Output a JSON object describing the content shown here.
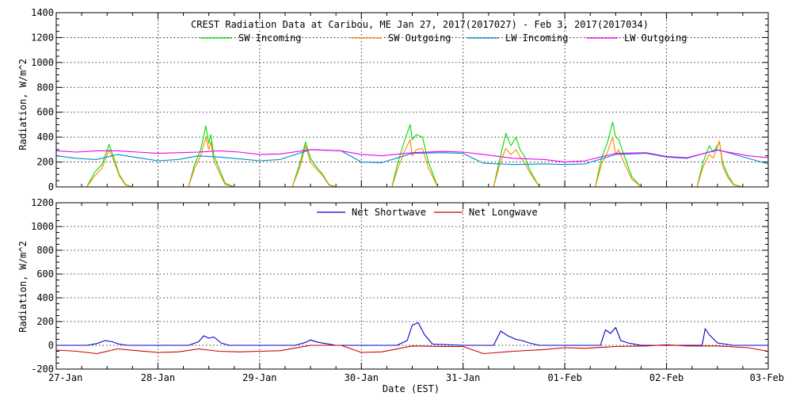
{
  "chart_data": [
    {
      "type": "line",
      "title": "CREST Radiation Data at Caribou, ME   Jan 27, 2017(2017027) - Feb  3, 2017(2017034)",
      "ylabel": "Radiation, W/m^2",
      "xlabel": "",
      "ylim": [
        0,
        1400
      ],
      "yticks": [
        0,
        200,
        400,
        600,
        800,
        1000,
        1200,
        1400
      ],
      "xlim": [
        0,
        7
      ],
      "xticklabels": [],
      "grid": true,
      "legend_position": "top",
      "series": [
        {
          "name": "SW Incoming",
          "color": "#00dd00",
          "x": [
            0,
            0.3,
            0.38,
            0.45,
            0.52,
            0.58,
            0.62,
            0.68,
            0.75,
            1,
            1.3,
            1.36,
            1.42,
            1.47,
            1.5,
            1.52,
            1.55,
            1.6,
            1.66,
            1.75,
            2,
            2.32,
            2.4,
            2.45,
            2.5,
            2.55,
            2.62,
            2.68,
            2.75,
            3,
            3.3,
            3.36,
            3.42,
            3.48,
            3.5,
            3.54,
            3.6,
            3.66,
            3.75,
            4,
            4.3,
            4.36,
            4.42,
            4.47,
            4.52,
            4.56,
            4.6,
            4.66,
            4.75,
            5,
            5.3,
            5.36,
            5.42,
            5.47,
            5.5,
            5.53,
            5.58,
            5.66,
            5.75,
            6,
            6.3,
            6.36,
            6.42,
            6.46,
            6.52,
            6.55,
            6.6,
            6.66,
            6.75,
            7
          ],
          "values": [
            0,
            0,
            120,
            180,
            340,
            200,
            100,
            20,
            0,
            0,
            0,
            180,
            300,
            490,
            350,
            420,
            250,
            150,
            30,
            0,
            0,
            0,
            200,
            360,
            230,
            170,
            100,
            20,
            0,
            0,
            0,
            200,
            360,
            500,
            380,
            420,
            400,
            200,
            0,
            0,
            0,
            220,
            430,
            330,
            400,
            300,
            250,
            130,
            0,
            0,
            0,
            230,
            360,
            520,
            400,
            380,
            260,
            80,
            0,
            0,
            0,
            200,
            330,
            280,
            360,
            200,
            100,
            20,
            0,
            0
          ]
        },
        {
          "name": "SW Outgoing",
          "color": "#ff8800",
          "x": [
            0,
            0.3,
            0.38,
            0.45,
            0.52,
            0.58,
            0.62,
            0.68,
            0.75,
            1,
            1.3,
            1.36,
            1.42,
            1.47,
            1.5,
            1.52,
            1.55,
            1.6,
            1.66,
            1.75,
            2,
            2.32,
            2.4,
            2.45,
            2.5,
            2.55,
            2.62,
            2.68,
            2.75,
            3,
            3.3,
            3.36,
            3.42,
            3.48,
            3.5,
            3.54,
            3.6,
            3.66,
            3.75,
            4,
            4.3,
            4.36,
            4.42,
            4.47,
            4.52,
            4.56,
            4.6,
            4.66,
            4.75,
            5,
            5.3,
            5.36,
            5.42,
            5.47,
            5.5,
            5.53,
            5.58,
            5.66,
            5.75,
            6,
            6.3,
            6.36,
            6.42,
            6.46,
            6.52,
            6.55,
            6.6,
            6.66,
            6.75,
            7
          ],
          "values": [
            0,
            0,
            90,
            150,
            300,
            180,
            90,
            15,
            0,
            0,
            0,
            150,
            250,
            400,
            300,
            360,
            210,
            120,
            20,
            0,
            0,
            0,
            170,
            330,
            200,
            150,
            90,
            15,
            0,
            0,
            0,
            150,
            280,
            380,
            250,
            300,
            310,
            150,
            0,
            0,
            0,
            180,
            310,
            260,
            300,
            240,
            200,
            110,
            0,
            0,
            0,
            180,
            280,
            400,
            260,
            300,
            200,
            60,
            0,
            0,
            0,
            160,
            260,
            230,
            370,
            170,
            80,
            15,
            0,
            0
          ]
        },
        {
          "name": "LW Incoming",
          "color": "#0088cc",
          "x": [
            0,
            0.2,
            0.4,
            0.6,
            0.8,
            1,
            1.2,
            1.4,
            1.6,
            1.8,
            2,
            2.2,
            2.5,
            2.8,
            3,
            3.2,
            3.5,
            3.8,
            4,
            4.2,
            4.5,
            4.8,
            5,
            5.2,
            5.5,
            5.8,
            6,
            6.2,
            6.5,
            6.8,
            7
          ],
          "values": [
            250,
            230,
            220,
            260,
            235,
            210,
            220,
            250,
            240,
            225,
            210,
            220,
            300,
            290,
            200,
            195,
            270,
            275,
            270,
            190,
            180,
            185,
            180,
            185,
            260,
            270,
            240,
            230,
            300,
            230,
            185
          ]
        },
        {
          "name": "LW Outgoing",
          "color": "#ee00ee",
          "x": [
            0,
            0.2,
            0.4,
            0.6,
            0.8,
            1,
            1.2,
            1.4,
            1.6,
            1.8,
            2,
            2.2,
            2.5,
            2.8,
            3,
            3.2,
            3.5,
            3.8,
            4,
            4.2,
            4.5,
            4.8,
            5,
            5.2,
            5.5,
            5.8,
            6,
            6.2,
            6.5,
            6.8,
            7
          ],
          "values": [
            290,
            280,
            290,
            290,
            280,
            270,
            275,
            280,
            290,
            280,
            260,
            265,
            300,
            290,
            260,
            250,
            275,
            285,
            280,
            260,
            230,
            220,
            200,
            210,
            270,
            275,
            245,
            235,
            295,
            250,
            235
          ]
        }
      ]
    },
    {
      "type": "line",
      "title": "",
      "ylabel": "Radiation, W/m^2",
      "xlabel": "Date (EST)",
      "ylim": [
        -200,
        1200
      ],
      "yticks": [
        -200,
        0,
        200,
        400,
        600,
        800,
        1000,
        1200
      ],
      "xlim": [
        0,
        7
      ],
      "xticklabels": [
        "27-Jan",
        "28-Jan",
        "29-Jan",
        "30-Jan",
        "31-Jan",
        "01-Feb",
        "02-Feb",
        "03-Feb"
      ],
      "grid": true,
      "legend_position": "top",
      "series": [
        {
          "name": "Net Shortwave",
          "color": "#0000cc",
          "x": [
            0,
            0.3,
            0.4,
            0.48,
            0.55,
            0.62,
            0.7,
            1,
            1.3,
            1.4,
            1.45,
            1.5,
            1.55,
            1.62,
            1.7,
            2,
            2.35,
            2.45,
            2.5,
            2.58,
            2.65,
            2.75,
            3,
            3.35,
            3.45,
            3.5,
            3.56,
            3.62,
            3.7,
            4,
            4.3,
            4.37,
            4.44,
            4.52,
            4.58,
            4.65,
            4.75,
            5,
            5.35,
            5.4,
            5.45,
            5.5,
            5.55,
            5.62,
            5.75,
            6,
            6.35,
            6.38,
            6.42,
            6.5,
            6.58,
            6.65,
            6.75,
            7
          ],
          "values": [
            0,
            0,
            15,
            40,
            30,
            10,
            0,
            0,
            0,
            30,
            80,
            60,
            70,
            20,
            0,
            0,
            0,
            25,
            45,
            25,
            15,
            0,
            0,
            0,
            40,
            170,
            190,
            90,
            10,
            0,
            0,
            120,
            80,
            50,
            40,
            20,
            0,
            0,
            0,
            130,
            100,
            150,
            40,
            20,
            0,
            0,
            0,
            140,
            90,
            20,
            10,
            0,
            0,
            0
          ]
        },
        {
          "name": "Net Longwave",
          "color": "#cc0000",
          "x": [
            0,
            0.2,
            0.4,
            0.6,
            0.8,
            1,
            1.2,
            1.4,
            1.6,
            1.8,
            2,
            2.2,
            2.5,
            2.8,
            3,
            3.2,
            3.5,
            3.8,
            4,
            4.2,
            4.5,
            4.8,
            5,
            5.2,
            5.5,
            5.8,
            6,
            6.2,
            6.5,
            6.8,
            7
          ],
          "values": [
            -40,
            -50,
            -70,
            -30,
            -45,
            -60,
            -55,
            -30,
            -50,
            -55,
            -50,
            -45,
            0,
            0,
            -60,
            -55,
            -5,
            -10,
            -10,
            -70,
            -50,
            -35,
            -20,
            -25,
            -10,
            -5,
            5,
            -5,
            -5,
            -20,
            -50
          ]
        }
      ]
    }
  ]
}
